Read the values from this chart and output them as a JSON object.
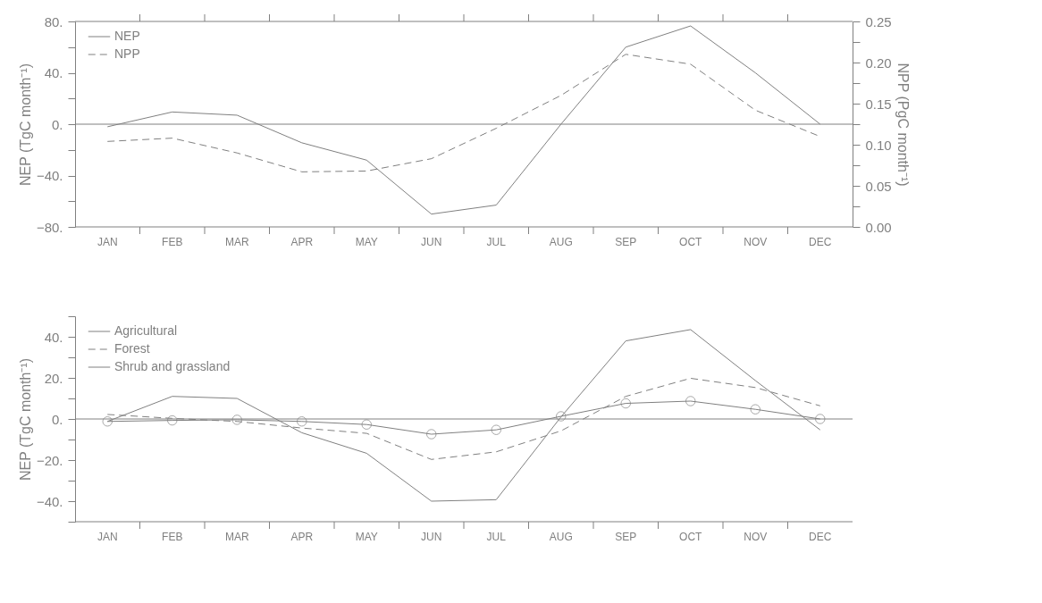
{
  "chart_data": [
    {
      "type": "line",
      "categories": [
        "JAN",
        "FEB",
        "MAR",
        "APR",
        "MAY",
        "JUN",
        "JUL",
        "AUG",
        "SEP",
        "OCT",
        "NOV",
        "DEC"
      ],
      "ylabel": "NEP (TgC month⁻¹)",
      "y2label": "NPP (PgC month⁻¹)",
      "ylim": [
        -80,
        80
      ],
      "yticks": [
        {
          "value": -80,
          "label": "−80."
        },
        {
          "value": -60,
          "label": null
        },
        {
          "value": -40,
          "label": "−40."
        },
        {
          "value": -20,
          "label": null
        },
        {
          "value": 0,
          "label": "0."
        },
        {
          "value": 20,
          "label": null
        },
        {
          "value": 40,
          "label": "40."
        },
        {
          "value": 60,
          "label": null
        },
        {
          "value": 80,
          "label": "80."
        }
      ],
      "y2lim": [
        0,
        0.25
      ],
      "y2ticks": [
        {
          "value": 0,
          "label": "0.00"
        },
        {
          "value": 0.025,
          "label": null
        },
        0.05,
        {
          "value": 0.075,
          "label": null
        },
        {
          "value": 0.1,
          "label": "0.10"
        },
        {
          "value": 0.125,
          "label": null
        },
        0.15,
        {
          "value": 0.175,
          "label": null
        },
        {
          "value": 0.2,
          "label": "0.20"
        },
        {
          "value": 0.225,
          "label": null
        },
        0.25
      ],
      "legend": "top left",
      "ref_lines": [
        {
          "axis": "y",
          "value": 0,
          "label": null,
          "color": "#808080"
        }
      ],
      "series": [
        {
          "name": "NEP",
          "color": "#808080",
          "line_style": "solid",
          "marker": "none",
          "values": [
            -2,
            9.5,
            7,
            -14.5,
            -28,
            -70,
            -63,
            0,
            60,
            76.5,
            40,
            0
          ]
        },
        {
          "name": "NPP",
          "color": "#808080",
          "line_style": "dashed",
          "marker": "none",
          "axis": "y2",
          "values": [
            0.104,
            0.108,
            0.09,
            0.067,
            0.068,
            0.083,
            0.12,
            0.16,
            0.21,
            0.198,
            0.142,
            0.11
          ]
        }
      ]
    },
    {
      "type": "line",
      "categories": [
        "JAN",
        "FEB",
        "MAR",
        "APR",
        "MAY",
        "JUN",
        "JUL",
        "AUG",
        "SEP",
        "OCT",
        "NOV",
        "DEC"
      ],
      "ylabel": "NEP (TgC month⁻¹)",
      "ylim": [
        -50,
        50
      ],
      "yticks": [
        {
          "value": -50,
          "label": null
        },
        {
          "value": -40,
          "label": "−40."
        },
        {
          "value": -30,
          "label": null
        },
        {
          "value": -20,
          "label": "−20."
        },
        {
          "value": -10,
          "label": null
        },
        {
          "value": 0,
          "label": "0."
        },
        {
          "value": 10,
          "label": null
        },
        {
          "value": 20,
          "label": "20."
        },
        {
          "value": 30,
          "label": null
        },
        {
          "value": 40,
          "label": "40."
        },
        {
          "value": 50,
          "label": null
        }
      ],
      "legend": "top left",
      "ref_lines": [
        {
          "axis": "y",
          "value": 0,
          "label": null,
          "color": "#808080"
        }
      ],
      "series": [
        {
          "name": "Agricultural",
          "color": "#808080",
          "line_style": "solid",
          "marker": "none",
          "values": [
            -1.2,
            11,
            10,
            -6.7,
            -16.7,
            -40,
            -39.3,
            1,
            38,
            43.5,
            18.7,
            -5.3
          ]
        },
        {
          "name": "Forest",
          "color": "#808080",
          "line_style": "dashed",
          "marker": "none",
          "values": [
            2.2,
            0.3,
            -1.2,
            -4.4,
            -7,
            -19.7,
            -16,
            -5.8,
            11,
            19.8,
            15.3,
            6.4
          ]
        },
        {
          "name": "Shrub and grassland",
          "color": "#808080",
          "line_style": "solid",
          "marker": "circle",
          "values": [
            -1.2,
            -0.7,
            -0.4,
            -1.2,
            -2.7,
            -7.4,
            -5.3,
            1.3,
            7.6,
            8.7,
            4.7,
            0
          ]
        }
      ]
    }
  ]
}
